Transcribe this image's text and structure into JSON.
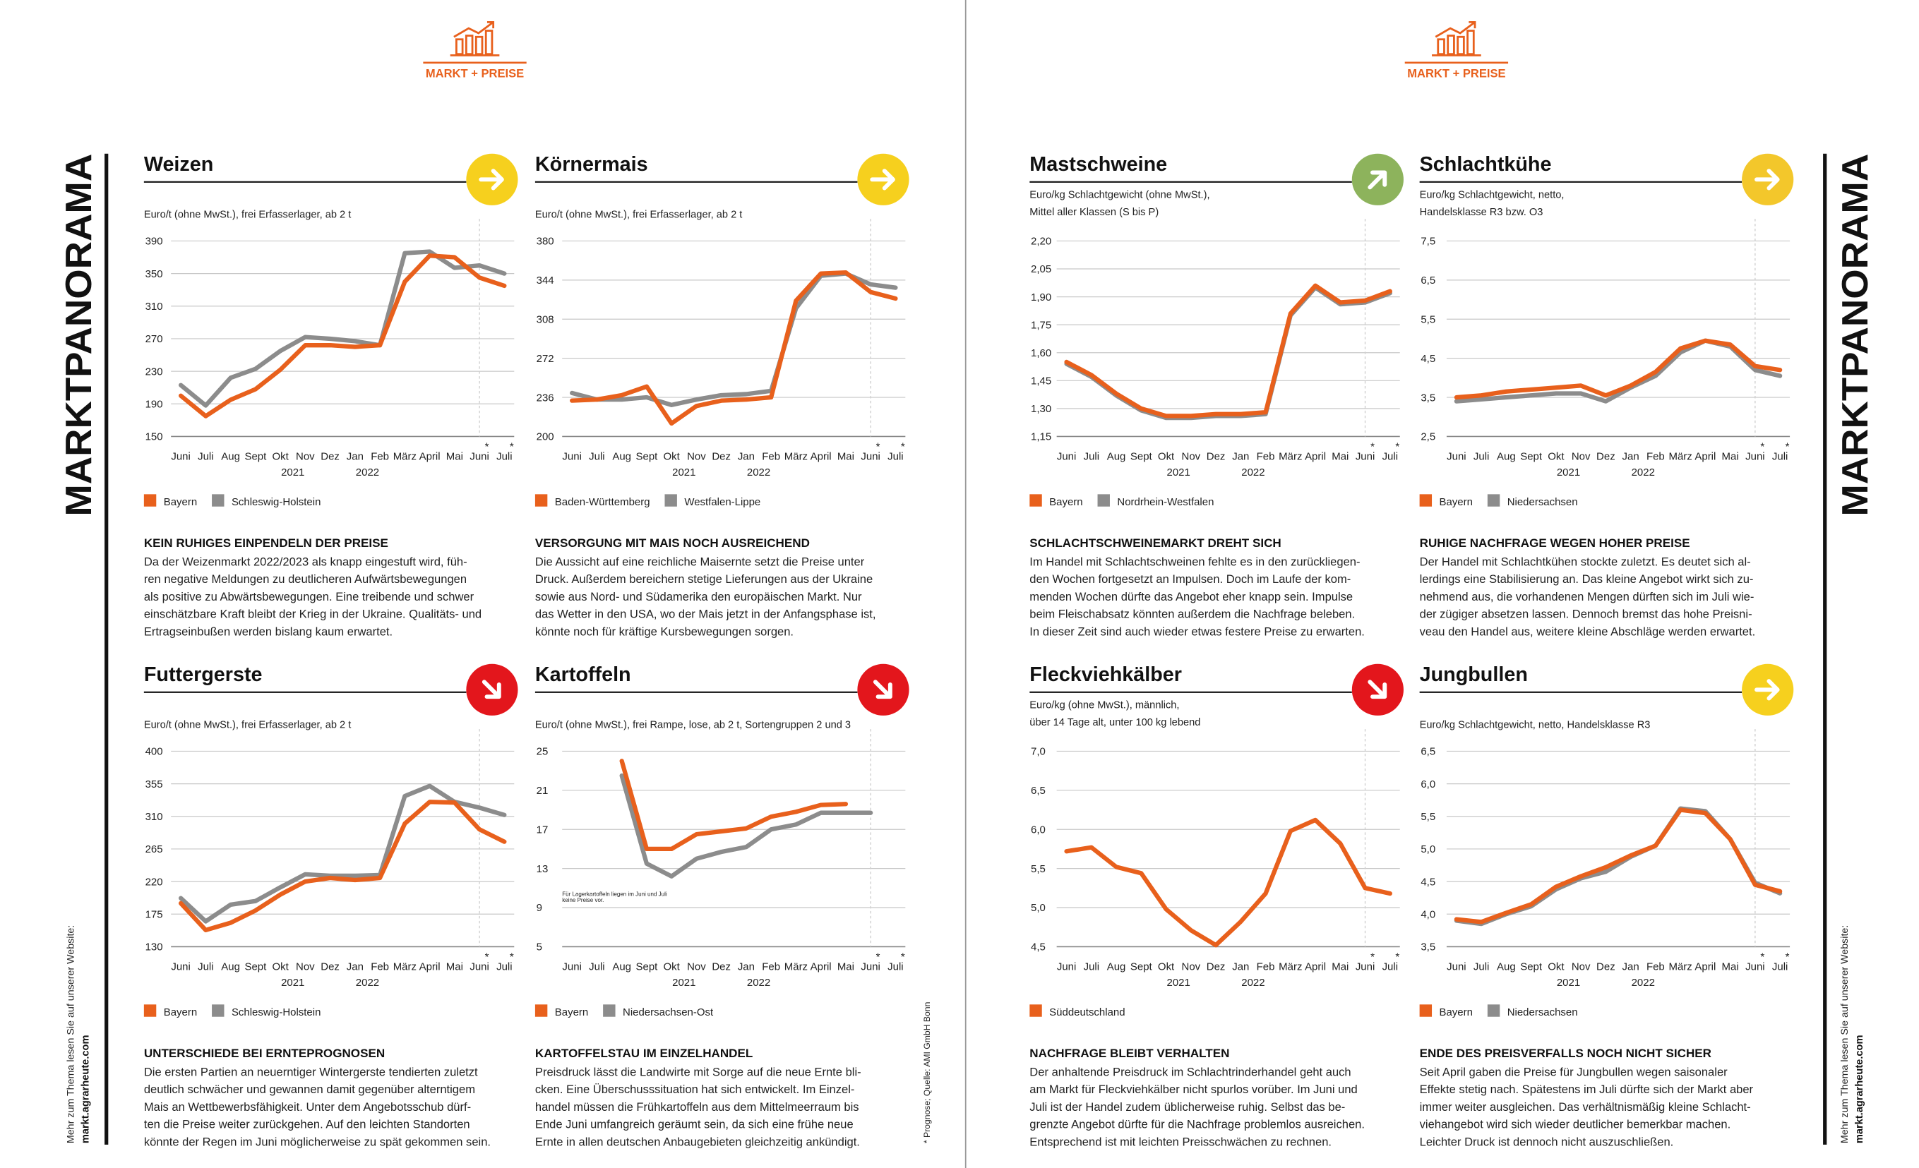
{
  "page": {
    "header": "MARKT + PREISE",
    "side_title": "MARKTPANORAMA",
    "website_note": "Mehr zum Thema lesen Sie auf unserer Website:",
    "website": "markt.agrarheute.com",
    "source": "* Prognose; Quelle: AMI GmbH Bonn"
  },
  "chart_data": [
    {
      "type": "line",
      "title": "Weizen",
      "subtitle": [
        "Euro/t (ohne MwSt.), frei Erfasserlager, ab 2 t"
      ],
      "categories": [
        "Juni",
        "Juli",
        "Aug",
        "Sept",
        "Okt",
        "Nov",
        "Dez",
        "Jan",
        "Feb",
        "März",
        "April",
        "Mai",
        "Juni",
        "Juli"
      ],
      "years": [
        "2021",
        "2022"
      ],
      "forecast_mark": "*",
      "grid": true,
      "ylim": [
        150,
        390
      ],
      "yticks": [
        150,
        190,
        230,
        270,
        310,
        350,
        390
      ],
      "series": [
        {
          "name": "Bayern",
          "color": "#e8601c",
          "values": [
            200,
            175,
            195,
            208,
            232,
            262,
            262,
            260,
            262,
            340,
            372,
            370,
            345,
            335
          ]
        },
        {
          "name": "Schleswig-Holstein",
          "color": "#8c8c8c",
          "values": [
            213,
            188,
            222,
            233,
            255,
            272,
            270,
            267,
            262,
            375,
            377,
            357,
            360,
            350
          ]
        }
      ],
      "trend": {
        "direction": "right",
        "color": "#f6d01e"
      },
      "heading": "KEIN RUHIGES EINPENDELN DER PREISE",
      "text": [
        "Da der Weizenmarkt 2022/2023 als knapp eingestuft wird, füh-",
        "ren negative Meldungen zu deutlicheren Aufwärtsbewegungen",
        "als positive zu Abwärtsbewegungen. Eine treibende und schwer",
        "einschätzbare Kraft bleibt der Krieg in der Ukraine. Qualitäts- und",
        "Ertragseinbußen werden bislang kaum erwartet."
      ]
    },
    {
      "type": "line",
      "title": "Körnermais",
      "subtitle": [
        "Euro/t (ohne MwSt.), frei Erfasserlager, ab 2 t"
      ],
      "categories": [
        "Juni",
        "Juli",
        "Aug",
        "Sept",
        "Okt",
        "Nov",
        "Dez",
        "Jan",
        "Feb",
        "März",
        "April",
        "Mai",
        "Juni",
        "Juli"
      ],
      "years": [
        "2021",
        "2022"
      ],
      "forecast_mark": "*",
      "grid": true,
      "ylim": [
        200,
        380
      ],
      "yticks": [
        200,
        236,
        272,
        308,
        344,
        380
      ],
      "series": [
        {
          "name": "Baden-Württemberg",
          "color": "#e8601c",
          "values": [
            233,
            234,
            238,
            246,
            212,
            228,
            233,
            234,
            236,
            325,
            350,
            351,
            333,
            327
          ]
        },
        {
          "name": "Westfalen-Lippe",
          "color": "#8c8c8c",
          "values": [
            240,
            234,
            234,
            236,
            229,
            234,
            238,
            239,
            242,
            318,
            348,
            350,
            340,
            337
          ]
        }
      ],
      "trend": {
        "direction": "right",
        "color": "#f6d01e"
      },
      "heading": "VERSORGUNG MIT MAIS NOCH AUSREICHEND",
      "text": [
        "Die Aussicht auf eine reichliche Maisernte setzt die Preise unter",
        "Druck. Außerdem bereichern stetige Lieferungen aus der Ukraine",
        "sowie aus Nord- und Südamerika den europäischen Markt. Nur",
        "das Wetter in den USA, wo der Mais jetzt in der Anfangsphase ist,",
        "könnte noch für kräftige Kursbewegungen sorgen."
      ]
    },
    {
      "type": "line",
      "title": "Futtergerste",
      "subtitle": [
        "Euro/t (ohne MwSt.), frei Erfasserlager, ab 2 t"
      ],
      "categories": [
        "Juni",
        "Juli",
        "Aug",
        "Sept",
        "Okt",
        "Nov",
        "Dez",
        "Jan",
        "Feb",
        "März",
        "April",
        "Mai",
        "Juni",
        "Juli"
      ],
      "years": [
        "2021",
        "2022"
      ],
      "forecast_mark": "*",
      "grid": true,
      "ylim": [
        130,
        400
      ],
      "yticks": [
        130,
        175,
        220,
        265,
        310,
        355,
        400
      ],
      "series": [
        {
          "name": "Bayern",
          "color": "#e8601c",
          "values": [
            190,
            153,
            163,
            180,
            202,
            220,
            225,
            222,
            225,
            300,
            330,
            329,
            292,
            275
          ]
        },
        {
          "name": "Schleswig-Holstein",
          "color": "#8c8c8c",
          "values": [
            197,
            165,
            188,
            193,
            212,
            230,
            228,
            228,
            229,
            338,
            352,
            330,
            322,
            312
          ]
        }
      ],
      "trend": {
        "direction": "down-right",
        "color": "#e3161c"
      },
      "heading": "UNTERSCHIEDE BEI ERNTEPROGNOSEN",
      "text": [
        "Die ersten Partien an neuerntiger Wintergerste tendierten zuletzt",
        "deutlich schwächer und gewannen damit gegenüber alterntigem",
        "Mais an Wettbewerbsfähigkeit. Unter dem Angebotsschub dürf-",
        "ten die Preise weiter zurückgehen. Auf den leichten Standorten",
        "könnte der Regen im Juni möglicherweise zu spät gekommen sein."
      ]
    },
    {
      "type": "line",
      "title": "Kartoffeln",
      "subtitle": [
        "Euro/t (ohne MwSt.), frei Rampe, lose, ab 2 t, Sortengruppen 2 und 3"
      ],
      "categories": [
        "Juni",
        "Juli",
        "Aug",
        "Sept",
        "Okt",
        "Nov",
        "Dez",
        "Jan",
        "Feb",
        "März",
        "April",
        "Mai",
        "Juni",
        "Juli"
      ],
      "years": [
        "2021",
        "2022"
      ],
      "forecast_mark": "*",
      "grid": true,
      "ylim": [
        5,
        25
      ],
      "yticks": [
        5,
        9,
        13,
        17,
        21,
        25
      ],
      "series": [
        {
          "name": "Bayern",
          "color": "#e8601c",
          "values": [
            null,
            null,
            24,
            15,
            15,
            16.5,
            16.8,
            17.1,
            18.3,
            18.8,
            19.5,
            19.6,
            null,
            null
          ]
        },
        {
          "name": "Niedersachsen-Ost",
          "color": "#8c8c8c",
          "values": [
            null,
            null,
            22.5,
            13.5,
            12.2,
            14,
            14.7,
            15.2,
            17,
            17.5,
            18.7,
            18.7,
            18.7,
            null
          ]
        }
      ],
      "annotation": [
        "Für Lagerkartoffeln liegen im Juni und Juli",
        "keine Preise vor."
      ],
      "trend": {
        "direction": "down-right",
        "color": "#e3161c"
      },
      "heading": "KARTOFFELSTAU IM EINZELHANDEL",
      "text": [
        "Preisdruck lässt die Landwirte mit Sorge auf die neue Ernte bli-",
        "cken. Eine Überschusssituation hat sich entwickelt. Im Einzel-",
        "handel müssen die Frühkartoffeln aus dem Mittelmeerraum bis",
        "Ende Juni umfangreich geräumt sein, da sich eine frühe neue",
        "Ernte in allen deutschen Anbaugebieten gleichzeitig ankündigt."
      ]
    },
    {
      "type": "line",
      "title": "Mastschweine",
      "subtitle": [
        "Euro/kg Schlachtgewicht (ohne MwSt.),",
        "Mittel aller Klassen (S bis P)"
      ],
      "categories": [
        "Juni",
        "Juli",
        "Aug",
        "Sept",
        "Okt",
        "Nov",
        "Dez",
        "Jan",
        "Feb",
        "März",
        "April",
        "Mai",
        "Juni",
        "Juli"
      ],
      "years": [
        "2021",
        "2022"
      ],
      "forecast_mark": "*",
      "grid": true,
      "ylim": [
        1.15,
        2.2
      ],
      "yticks": [
        {
          "value": 1.15,
          "label": "1,15"
        },
        {
          "value": 1.3,
          "label": "1,30"
        },
        {
          "value": 1.45,
          "label": "1,45"
        },
        {
          "value": 1.6,
          "label": "1,60"
        },
        {
          "value": 1.75,
          "label": "1,75"
        },
        {
          "value": 1.9,
          "label": "1,90"
        },
        {
          "value": 2.05,
          "label": "2,05"
        },
        {
          "value": 2.2,
          "label": "2,20"
        }
      ],
      "series": [
        {
          "name": "Bayern",
          "color": "#e8601c",
          "values": [
            1.55,
            1.48,
            1.38,
            1.3,
            1.26,
            1.26,
            1.27,
            1.27,
            1.28,
            1.81,
            1.96,
            1.87,
            1.88,
            1.93
          ]
        },
        {
          "name": "Nordrhein-Westfalen",
          "color": "#8c8c8c",
          "values": [
            1.54,
            1.47,
            1.37,
            1.29,
            1.25,
            1.25,
            1.26,
            1.26,
            1.27,
            1.8,
            1.95,
            1.86,
            1.87,
            1.92
          ]
        }
      ],
      "trend": {
        "direction": "up-right",
        "color": "#8db35c"
      },
      "heading": "SCHLACHTSCHWEINEMARKT DREHT SICH",
      "text": [
        "Im Handel mit Schlachtschweinen fehlte es in den zurückliegen-",
        "den Wochen fortgesetzt an Impulsen. Doch im Laufe der kom-",
        "menden Wochen dürfte das Angebot eher knapp sein. Impulse",
        "beim Fleischabsatz könnten außerdem die Nachfrage beleben.",
        "In dieser Zeit sind auch wieder etwas festere Preise zu erwarten."
      ]
    },
    {
      "type": "line",
      "title": "Schlachtkühe",
      "subtitle": [
        "Euro/kg Schlachtgewicht, netto,",
        "Handelsklasse R3 bzw. O3"
      ],
      "categories": [
        "Juni",
        "Juli",
        "Aug",
        "Sept",
        "Okt",
        "Nov",
        "Dez",
        "Jan",
        "Feb",
        "März",
        "April",
        "Mai",
        "Juni",
        "Juli"
      ],
      "years": [
        "2021",
        "2022"
      ],
      "forecast_mark": "*",
      "grid": true,
      "ylim": [
        2.5,
        7.5
      ],
      "yticks": [
        {
          "value": 2.5,
          "label": "2,5"
        },
        {
          "value": 3.5,
          "label": "3,5"
        },
        {
          "value": 4.5,
          "label": "4,5"
        },
        {
          "value": 5.5,
          "label": "5,5"
        },
        {
          "value": 6.5,
          "label": "6,5"
        },
        {
          "value": 7.5,
          "label": "7,5"
        }
      ],
      "series": [
        {
          "name": "Bayern",
          "color": "#e8601c",
          "values": [
            3.5,
            3.55,
            3.65,
            3.7,
            3.75,
            3.8,
            3.55,
            3.8,
            4.15,
            4.75,
            4.95,
            4.85,
            4.3,
            4.2
          ]
        },
        {
          "name": "Niedersachsen",
          "color": "#8c8c8c",
          "values": [
            3.4,
            3.45,
            3.5,
            3.55,
            3.6,
            3.6,
            3.4,
            3.75,
            4.05,
            4.65,
            4.95,
            4.8,
            4.2,
            4.05
          ]
        }
      ],
      "trend": {
        "direction": "right",
        "color": "#f3c72b"
      },
      "heading": "RUHIGE NACHFRAGE WEGEN HOHER PREISE",
      "text": [
        "Der Handel mit Schlachtkühen stockte zuletzt. Es deutet sich al-",
        "lerdings eine Stabilisierung an. Das kleine Angebot wirkt sich zu-",
        "nehmend aus, die vorhandenen Mengen dürften sich im Juli wie-",
        "der zügiger absetzen lassen. Dennoch bremst das hohe Preisni-",
        "veau den Handel aus, weitere kleine Abschläge werden erwartet."
      ]
    },
    {
      "type": "line",
      "title": "Fleckviehkälber",
      "subtitle": [
        "Euro/kg (ohne MwSt.), männlich,",
        "über 14 Tage alt, unter 100 kg lebend"
      ],
      "categories": [
        "Juni",
        "Juli",
        "Aug",
        "Sept",
        "Okt",
        "Nov",
        "Dez",
        "Jan",
        "Feb",
        "März",
        "April",
        "Mai",
        "Juni",
        "Juli"
      ],
      "years": [
        "2021",
        "2022"
      ],
      "forecast_mark": "*",
      "grid": true,
      "ylim": [
        4.5,
        7.0
      ],
      "yticks": [
        {
          "value": 4.5,
          "label": "4,5"
        },
        {
          "value": 5,
          "label": "5,0"
        },
        {
          "value": 5.5,
          "label": "5,5"
        },
        {
          "value": 6,
          "label": "6,0"
        },
        {
          "value": 6.5,
          "label": "6,5"
        },
        {
          "value": 7,
          "label": "7,0"
        }
      ],
      "series": [
        {
          "name": "Süddeutschland",
          "color": "#e8601c",
          "values": [
            5.72,
            5.77,
            5.52,
            5.44,
            4.98,
            4.71,
            4.52,
            4.82,
            5.18,
            5.98,
            6.12,
            5.82,
            5.25,
            5.18
          ]
        }
      ],
      "trend": {
        "direction": "down-right",
        "color": "#e3161c"
      },
      "heading": "NACHFRAGE BLEIBT VERHALTEN",
      "text": [
        "Der anhaltende Preisdruck im Schlachtrinderhandel geht auch",
        "am Markt für Fleckviehkälber nicht spurlos vorüber. Im Juni und",
        "Juli ist der Handel zudem üblicherweise ruhig. Selbst das be-",
        "grenzte Angebot dürfte für die Nachfrage problemlos ausreichen.",
        "Entsprechend ist mit leichten Preisschwächen zu rechnen."
      ]
    },
    {
      "type": "line",
      "title": "Jungbullen",
      "subtitle": [
        "Euro/kg Schlachtgewicht, netto, Handelsklasse R3"
      ],
      "categories": [
        "Juni",
        "Juli",
        "Aug",
        "Sept",
        "Okt",
        "Nov",
        "Dez",
        "Jan",
        "Feb",
        "März",
        "April",
        "Mai",
        "Juni",
        "Juli"
      ],
      "years": [
        "2021",
        "2022"
      ],
      "forecast_mark": "*",
      "grid": true,
      "ylim": [
        3.5,
        6.5
      ],
      "yticks": [
        {
          "value": 3.5,
          "label": "3,5"
        },
        {
          "value": 4,
          "label": "4,0"
        },
        {
          "value": 4.5,
          "label": "4,5"
        },
        {
          "value": 5,
          "label": "5,0"
        },
        {
          "value": 5.5,
          "label": "5,5"
        },
        {
          "value": 6,
          "label": "6,0"
        },
        {
          "value": 6.5,
          "label": "6,5"
        }
      ],
      "series": [
        {
          "name": "Bayern",
          "color": "#e8601c",
          "values": [
            3.92,
            3.88,
            4.02,
            4.15,
            4.42,
            4.58,
            4.72,
            4.9,
            5.05,
            5.6,
            5.55,
            5.15,
            4.45,
            4.35
          ]
        },
        {
          "name": "Niedersachsen",
          "color": "#8c8c8c",
          "values": [
            3.9,
            3.85,
            4.0,
            4.12,
            4.38,
            4.55,
            4.65,
            4.88,
            5.05,
            5.62,
            5.58,
            5.15,
            4.48,
            4.32
          ]
        }
      ],
      "trend": {
        "direction": "right",
        "color": "#f6d01e"
      },
      "heading": "ENDE DES PREISVERFALLS NOCH NICHT SICHER",
      "text": [
        "Seit April gaben die Preise für Jungbullen wegen saisonaler",
        "Effekte stetig nach. Spätestens im Juli dürfte sich der Markt aber",
        "immer weiter ausgleichen. Das verhältnismäßig kleine Schlacht-",
        "viehangebot wird sich wieder deutlicher bemerkbar machen.",
        "Leichter Druck ist dennoch nicht auszuschließen."
      ]
    }
  ]
}
